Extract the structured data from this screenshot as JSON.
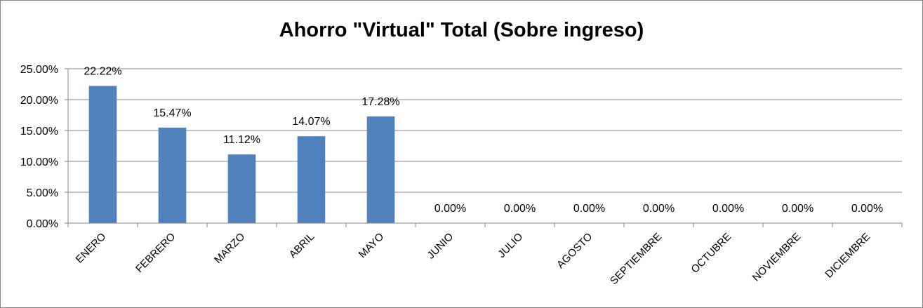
{
  "chart_data": {
    "type": "bar",
    "title": "Ahorro \"Virtual\" Total (Sobre ingreso)",
    "categories": [
      "ENERO",
      "FEBRERO",
      "MARZO",
      "ABRIL",
      "MAYO",
      "JUNIO",
      "JULIO",
      "AGOSTO",
      "SEPTIEMBRE",
      "OCTUBRE",
      "NOVIEMBRE",
      "DICIEMBRE"
    ],
    "values": [
      22.22,
      15.47,
      11.12,
      14.07,
      17.28,
      0,
      0,
      0,
      0,
      0,
      0,
      0
    ],
    "data_labels": [
      "22.22%",
      "15.47%",
      "11.12%",
      "14.07%",
      "17.28%",
      "0.00%",
      "0.00%",
      "0.00%",
      "0.00%",
      "0.00%",
      "0.00%",
      "0.00%"
    ],
    "y_ticks": [
      0,
      5,
      10,
      15,
      20,
      25
    ],
    "y_tick_labels": [
      "0.00%",
      "5.00%",
      "10.00%",
      "15.00%",
      "20.00%",
      "25.00%"
    ],
    "ylim": [
      0,
      25
    ],
    "xlabel": "",
    "ylabel": "",
    "grid": true,
    "legend": "none",
    "bar_color": "#4F81BD",
    "gridline_color": "#868686"
  }
}
